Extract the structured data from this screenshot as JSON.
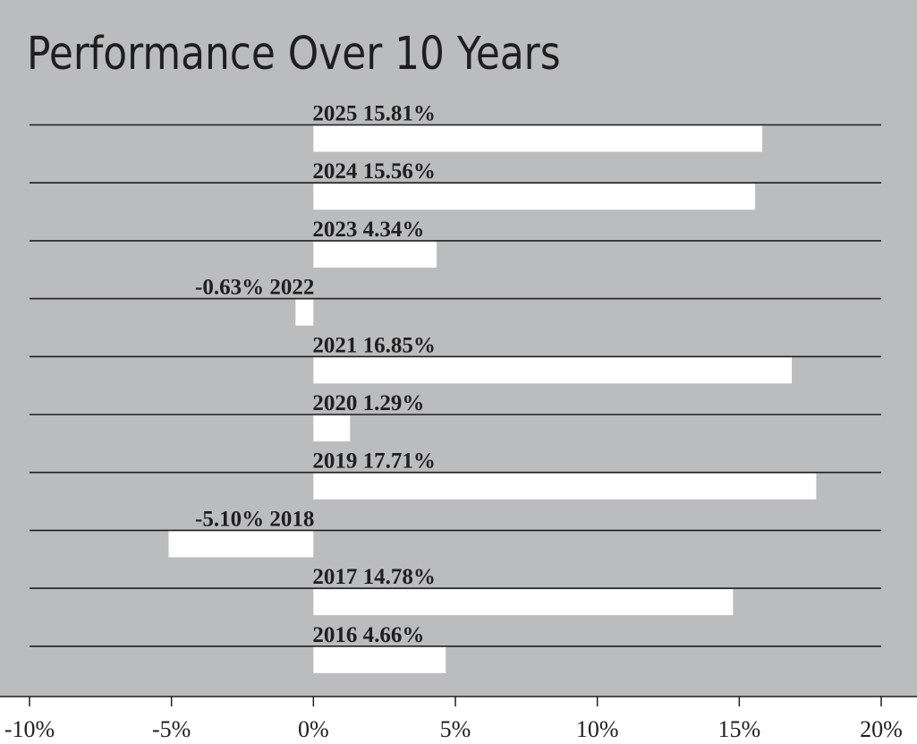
{
  "chart_data": {
    "type": "bar",
    "orientation": "horizontal",
    "title": "Performance Over 10 Years",
    "categories": [
      "2025",
      "2024",
      "2023",
      "2022",
      "2021",
      "2020",
      "2019",
      "2018",
      "2017",
      "2016"
    ],
    "values": [
      15.81,
      15.56,
      4.34,
      -0.63,
      16.85,
      1.29,
      17.71,
      -5.1,
      14.78,
      4.66
    ],
    "data_labels": [
      "15.81%",
      "15.56%",
      "4.34%",
      "-0.63%",
      "16.85%",
      "1.29%",
      "17.71%",
      "-5.10%",
      "14.78%",
      "4.66%"
    ],
    "xlim": [
      -10,
      20
    ],
    "xticks": [
      -10,
      -5,
      0,
      5,
      10,
      15,
      20
    ],
    "xtick_labels": [
      "-10%",
      "-5%",
      "0%",
      "5%",
      "10%",
      "15%",
      "20%"
    ],
    "xlabel": "",
    "ylabel": "",
    "grid": "horizontal rules",
    "legend": "none"
  },
  "colors": {
    "plot_background": "#bbbcbe",
    "bars": "#ffffff",
    "rules": "#1f1f1f",
    "text": "#1f1f1f"
  }
}
